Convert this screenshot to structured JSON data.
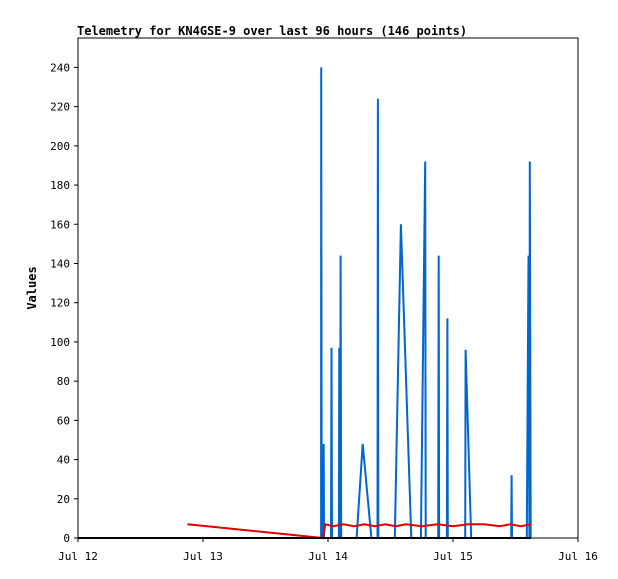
{
  "chart_data": {
    "type": "line",
    "title": "Telemetry for KN4GSE-9 over last 96 hours (146 points)",
    "xlabel": "",
    "ylabel": "Values",
    "x_domain": [
      "Jul 12",
      "Jul 16"
    ],
    "x_ticks": [
      "Jul 12",
      "Jul 13",
      "Jul 14",
      "Jul 15",
      "Jul 16"
    ],
    "ylim": [
      0,
      255
    ],
    "y_ticks": [
      0,
      20,
      40,
      60,
      80,
      100,
      120,
      140,
      160,
      180,
      200,
      220,
      240
    ],
    "grid": false,
    "legend": "none",
    "series": [
      {
        "color": "#0066cc",
        "points": [
          [
            "Jul 12 21:00",
            0
          ],
          [
            "Jul 13 22:00",
            0
          ],
          [
            "Jul 13 22:40",
            0
          ],
          [
            "Jul 13 22:42",
            240
          ],
          [
            "Jul 13 22:48",
            0
          ],
          [
            "Jul 13 23:05",
            0
          ],
          [
            "Jul 13 23:10",
            48
          ],
          [
            "Jul 13 23:14",
            0
          ],
          [
            "Jul 14 00:35",
            0
          ],
          [
            "Jul 14 00:40",
            97
          ],
          [
            "Jul 14 00:46",
            0
          ],
          [
            "Jul 14 02:05",
            0
          ],
          [
            "Jul 14 02:10",
            97
          ],
          [
            "Jul 14 02:16",
            0
          ],
          [
            "Jul 14 02:20",
            0
          ],
          [
            "Jul 14 02:25",
            144
          ],
          [
            "Jul 14 02:32",
            0
          ],
          [
            "Jul 14 05:30",
            0
          ],
          [
            "Jul 14 06:40",
            48
          ],
          [
            "Jul 14 08:20",
            0
          ],
          [
            "Jul 14 09:30",
            0
          ],
          [
            "Jul 14 09:35",
            224
          ],
          [
            "Jul 14 09:40",
            0
          ],
          [
            "Jul 14 12:50",
            0
          ],
          [
            "Jul 14 14:00",
            160
          ],
          [
            "Jul 14 16:00",
            0
          ],
          [
            "Jul 14 17:50",
            0
          ],
          [
            "Jul 14 18:40",
            192
          ],
          [
            "Jul 14 18:45",
            0
          ],
          [
            "Jul 14 21:10",
            0
          ],
          [
            "Jul 14 21:15",
            144
          ],
          [
            "Jul 14 21:20",
            0
          ],
          [
            "Jul 14 22:50",
            0
          ],
          [
            "Jul 14 22:55",
            112
          ],
          [
            "Jul 14 23:00",
            0
          ],
          [
            "Jul 15 02:20",
            0
          ],
          [
            "Jul 15 02:25",
            96
          ],
          [
            "Jul 15 03:30",
            0
          ],
          [
            "Jul 15 11:10",
            0
          ],
          [
            "Jul 15 11:15",
            32
          ],
          [
            "Jul 15 11:20",
            0
          ],
          [
            "Jul 15 14:10",
            0
          ],
          [
            "Jul 15 14:30",
            144
          ],
          [
            "Jul 15 14:40",
            0
          ],
          [
            "Jul 15 14:45",
            192
          ],
          [
            "Jul 15 14:55",
            0
          ]
        ]
      },
      {
        "color": "#e00000",
        "points": [
          [
            "Jul 12 21:00",
            7
          ],
          [
            "Jul 13 23:00",
            0
          ],
          [
            "Jul 13 23:30",
            7
          ],
          [
            "Jul 14 01:00",
            6
          ],
          [
            "Jul 14 03:00",
            7
          ],
          [
            "Jul 14 05:00",
            6
          ],
          [
            "Jul 14 07:00",
            7
          ],
          [
            "Jul 14 09:00",
            6
          ],
          [
            "Jul 14 11:00",
            7
          ],
          [
            "Jul 14 13:00",
            6
          ],
          [
            "Jul 14 15:00",
            7
          ],
          [
            "Jul 14 18:00",
            6
          ],
          [
            "Jul 14 21:00",
            7
          ],
          [
            "Jul 15 00:00",
            6
          ],
          [
            "Jul 15 03:00",
            7
          ],
          [
            "Jul 15 06:00",
            7
          ],
          [
            "Jul 15 09:00",
            6
          ],
          [
            "Jul 15 11:00",
            7
          ],
          [
            "Jul 15 13:00",
            6
          ],
          [
            "Jul 15 15:00",
            7
          ]
        ]
      },
      {
        "color": "#000000",
        "points": [
          [
            "Jul 12 00:00",
            0
          ],
          [
            "Jul 15 15:00",
            0
          ]
        ]
      }
    ]
  }
}
